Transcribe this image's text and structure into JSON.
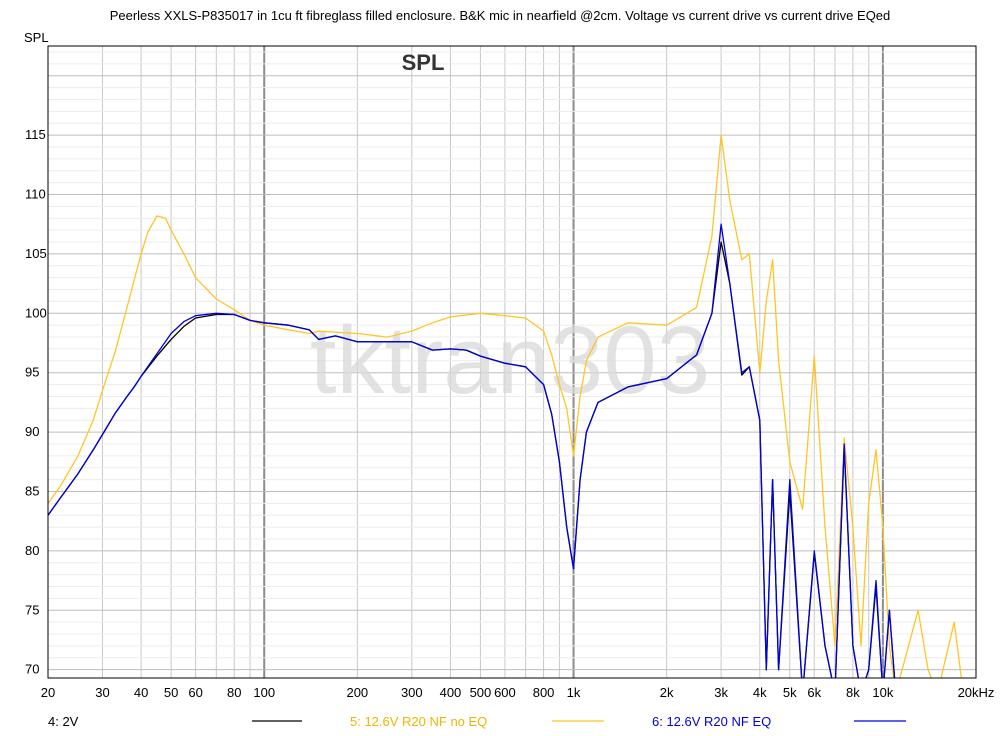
{
  "chart_data": {
    "type": "line",
    "title": "Peerless XXLS-P835017 in 1cu ft fibreglass filled enclosure. B&K mic in nearfield @2cm. Voltage vs current drive vs current drive EQed",
    "plot_title": "SPL",
    "ylabel": "SPL",
    "xlabel_unit": "kHz",
    "watermark": "tktran303",
    "x_scale": "log",
    "xlim": [
      20,
      20000
    ],
    "ylim": [
      69.3,
      122.5
    ],
    "grid": true,
    "x_ticks": [
      {
        "v": 20,
        "label": "20"
      },
      {
        "v": 30,
        "label": "30"
      },
      {
        "v": 40,
        "label": "40"
      },
      {
        "v": 50,
        "label": "50"
      },
      {
        "v": 60,
        "label": "60"
      },
      {
        "v": 80,
        "label": "80"
      },
      {
        "v": 100,
        "label": "100"
      },
      {
        "v": 200,
        "label": "200"
      },
      {
        "v": 300,
        "label": "300"
      },
      {
        "v": 400,
        "label": "400"
      },
      {
        "v": 500,
        "label": "500"
      },
      {
        "v": 600,
        "label": "600"
      },
      {
        "v": 800,
        "label": "800"
      },
      {
        "v": 1000,
        "label": "1k"
      },
      {
        "v": 2000,
        "label": "2k"
      },
      {
        "v": 3000,
        "label": "3k"
      },
      {
        "v": 4000,
        "label": "4k"
      },
      {
        "v": 5000,
        "label": "5k"
      },
      {
        "v": 6000,
        "label": "6k"
      },
      {
        "v": 8000,
        "label": "8k"
      },
      {
        "v": 10000,
        "label": "10k"
      },
      {
        "v": 20000,
        "label": "20kHz"
      }
    ],
    "y_ticks": [
      {
        "v": 70,
        "label": "70"
      },
      {
        "v": 75,
        "label": "75"
      },
      {
        "v": 80,
        "label": "80"
      },
      {
        "v": 85,
        "label": "85"
      },
      {
        "v": 90,
        "label": "90"
      },
      {
        "v": 95,
        "label": "95"
      },
      {
        "v": 100,
        "label": "100"
      },
      {
        "v": 105,
        "label": "105"
      },
      {
        "v": 110,
        "label": "110"
      },
      {
        "v": 115,
        "label": "115"
      }
    ],
    "series": [
      {
        "name": "4: 2V",
        "color": "#000000",
        "x": [
          20,
          22,
          25,
          28,
          30,
          33,
          36,
          38,
          40,
          45,
          50,
          55,
          60,
          70,
          80,
          90,
          100,
          120,
          140,
          150,
          170,
          200,
          250,
          300,
          350,
          400,
          450,
          500,
          600,
          700,
          800,
          850,
          900,
          950,
          1000,
          1050,
          1100,
          1200,
          1500,
          2000,
          2500,
          2800,
          3000,
          3200,
          3500,
          3700,
          4000,
          4200,
          4400,
          4600,
          5000,
          5500,
          6000,
          6500,
          7000,
          7500,
          8000,
          8500,
          9000,
          9500,
          10000,
          10500,
          11000
        ],
        "y": [
          83,
          84.5,
          86.5,
          88.5,
          89.8,
          91.6,
          93,
          93.8,
          94.7,
          96.4,
          97.8,
          98.9,
          99.6,
          99.9,
          99.9,
          99.4,
          99.2,
          99,
          98.6,
          97.8,
          98.1,
          97.6,
          97.6,
          97.6,
          96.9,
          97,
          96.9,
          96.4,
          95.8,
          95.5,
          94,
          91.5,
          87.5,
          82,
          78.5,
          86,
          90,
          92.5,
          93.8,
          94.5,
          96.5,
          100,
          106,
          102.5,
          94.8,
          95.5,
          91,
          70,
          86,
          70,
          85,
          68,
          79.8,
          72,
          68,
          88.7,
          72,
          68,
          70,
          77,
          68,
          75,
          68
        ]
      },
      {
        "name": "5: 12.6V R20 NF no EQ",
        "color": "#ffc525",
        "x": [
          20,
          22,
          25,
          28,
          30,
          33,
          36,
          38,
          40,
          42,
          45,
          48,
          50,
          55,
          60,
          70,
          80,
          90,
          100,
          120,
          140,
          150,
          200,
          250,
          300,
          350,
          400,
          500,
          600,
          700,
          800,
          850,
          900,
          950,
          1000,
          1050,
          1100,
          1200,
          1500,
          2000,
          2500,
          2800,
          3000,
          3200,
          3500,
          3700,
          4000,
          4200,
          4400,
          4600,
          5000,
          5500,
          6000,
          6500,
          7000,
          7500,
          8000,
          8500,
          9000,
          9500,
          10000,
          10500,
          11000,
          13000,
          14000,
          15000,
          17000,
          18000
        ],
        "y": [
          84,
          85.5,
          88,
          91,
          93.5,
          96.8,
          100.5,
          102.8,
          105,
          106.8,
          108.2,
          108,
          107,
          105,
          103,
          101.2,
          100.3,
          99.4,
          99,
          98.6,
          98.3,
          98.5,
          98.3,
          98,
          98.5,
          99.2,
          99.7,
          100,
          99.8,
          99.6,
          98.5,
          96.5,
          94,
          92,
          88,
          93,
          96,
          98,
          99.2,
          99,
          100.5,
          106.5,
          115,
          109.5,
          104.5,
          105,
          95,
          101,
          104.5,
          96,
          87.5,
          83.5,
          96.4,
          82,
          72,
          89.5,
          82,
          72,
          84,
          88.5,
          82,
          72,
          68,
          75,
          70,
          68,
          74,
          69
        ]
      },
      {
        "name": "6: 12.6V R20 NF EQ",
        "color": "#0000e0",
        "x": [
          20,
          22,
          25,
          28,
          30,
          33,
          36,
          38,
          40,
          45,
          50,
          55,
          60,
          70,
          80,
          90,
          100,
          120,
          140,
          150,
          170,
          200,
          250,
          300,
          350,
          400,
          450,
          500,
          600,
          700,
          800,
          850,
          900,
          950,
          1000,
          1050,
          1100,
          1200,
          1500,
          2000,
          2500,
          2800,
          3000,
          3200,
          3500,
          3700,
          4000,
          4200,
          4400,
          4600,
          5000,
          5500,
          6000,
          6500,
          7000,
          7500,
          8000,
          8500,
          9000,
          9500,
          10000,
          10500,
          11000
        ],
        "y": [
          83,
          84.5,
          86.5,
          88.5,
          89.8,
          91.6,
          93,
          93.8,
          94.7,
          96.6,
          98.3,
          99.3,
          99.8,
          100,
          99.9,
          99.4,
          99.2,
          99,
          98.6,
          97.8,
          98.1,
          97.6,
          97.6,
          97.6,
          96.9,
          97,
          96.9,
          96.4,
          95.8,
          95.5,
          94,
          91.5,
          87.5,
          82,
          78.5,
          86,
          90,
          92.5,
          93.8,
          94.5,
          96.5,
          100,
          107.5,
          102.5,
          95,
          95.5,
          91,
          70,
          86,
          70,
          86,
          68,
          80,
          72,
          68,
          89,
          72,
          68,
          70,
          77.5,
          68,
          75,
          68
        ]
      }
    ],
    "legend": [
      {
        "label": "4: 2V",
        "color": "#000000"
      },
      {
        "label": "5: 12.6V R20 NF no EQ",
        "color": "#ffc525"
      },
      {
        "label": "6: 12.6V R20 NF EQ",
        "color": "#0000e0"
      }
    ]
  }
}
